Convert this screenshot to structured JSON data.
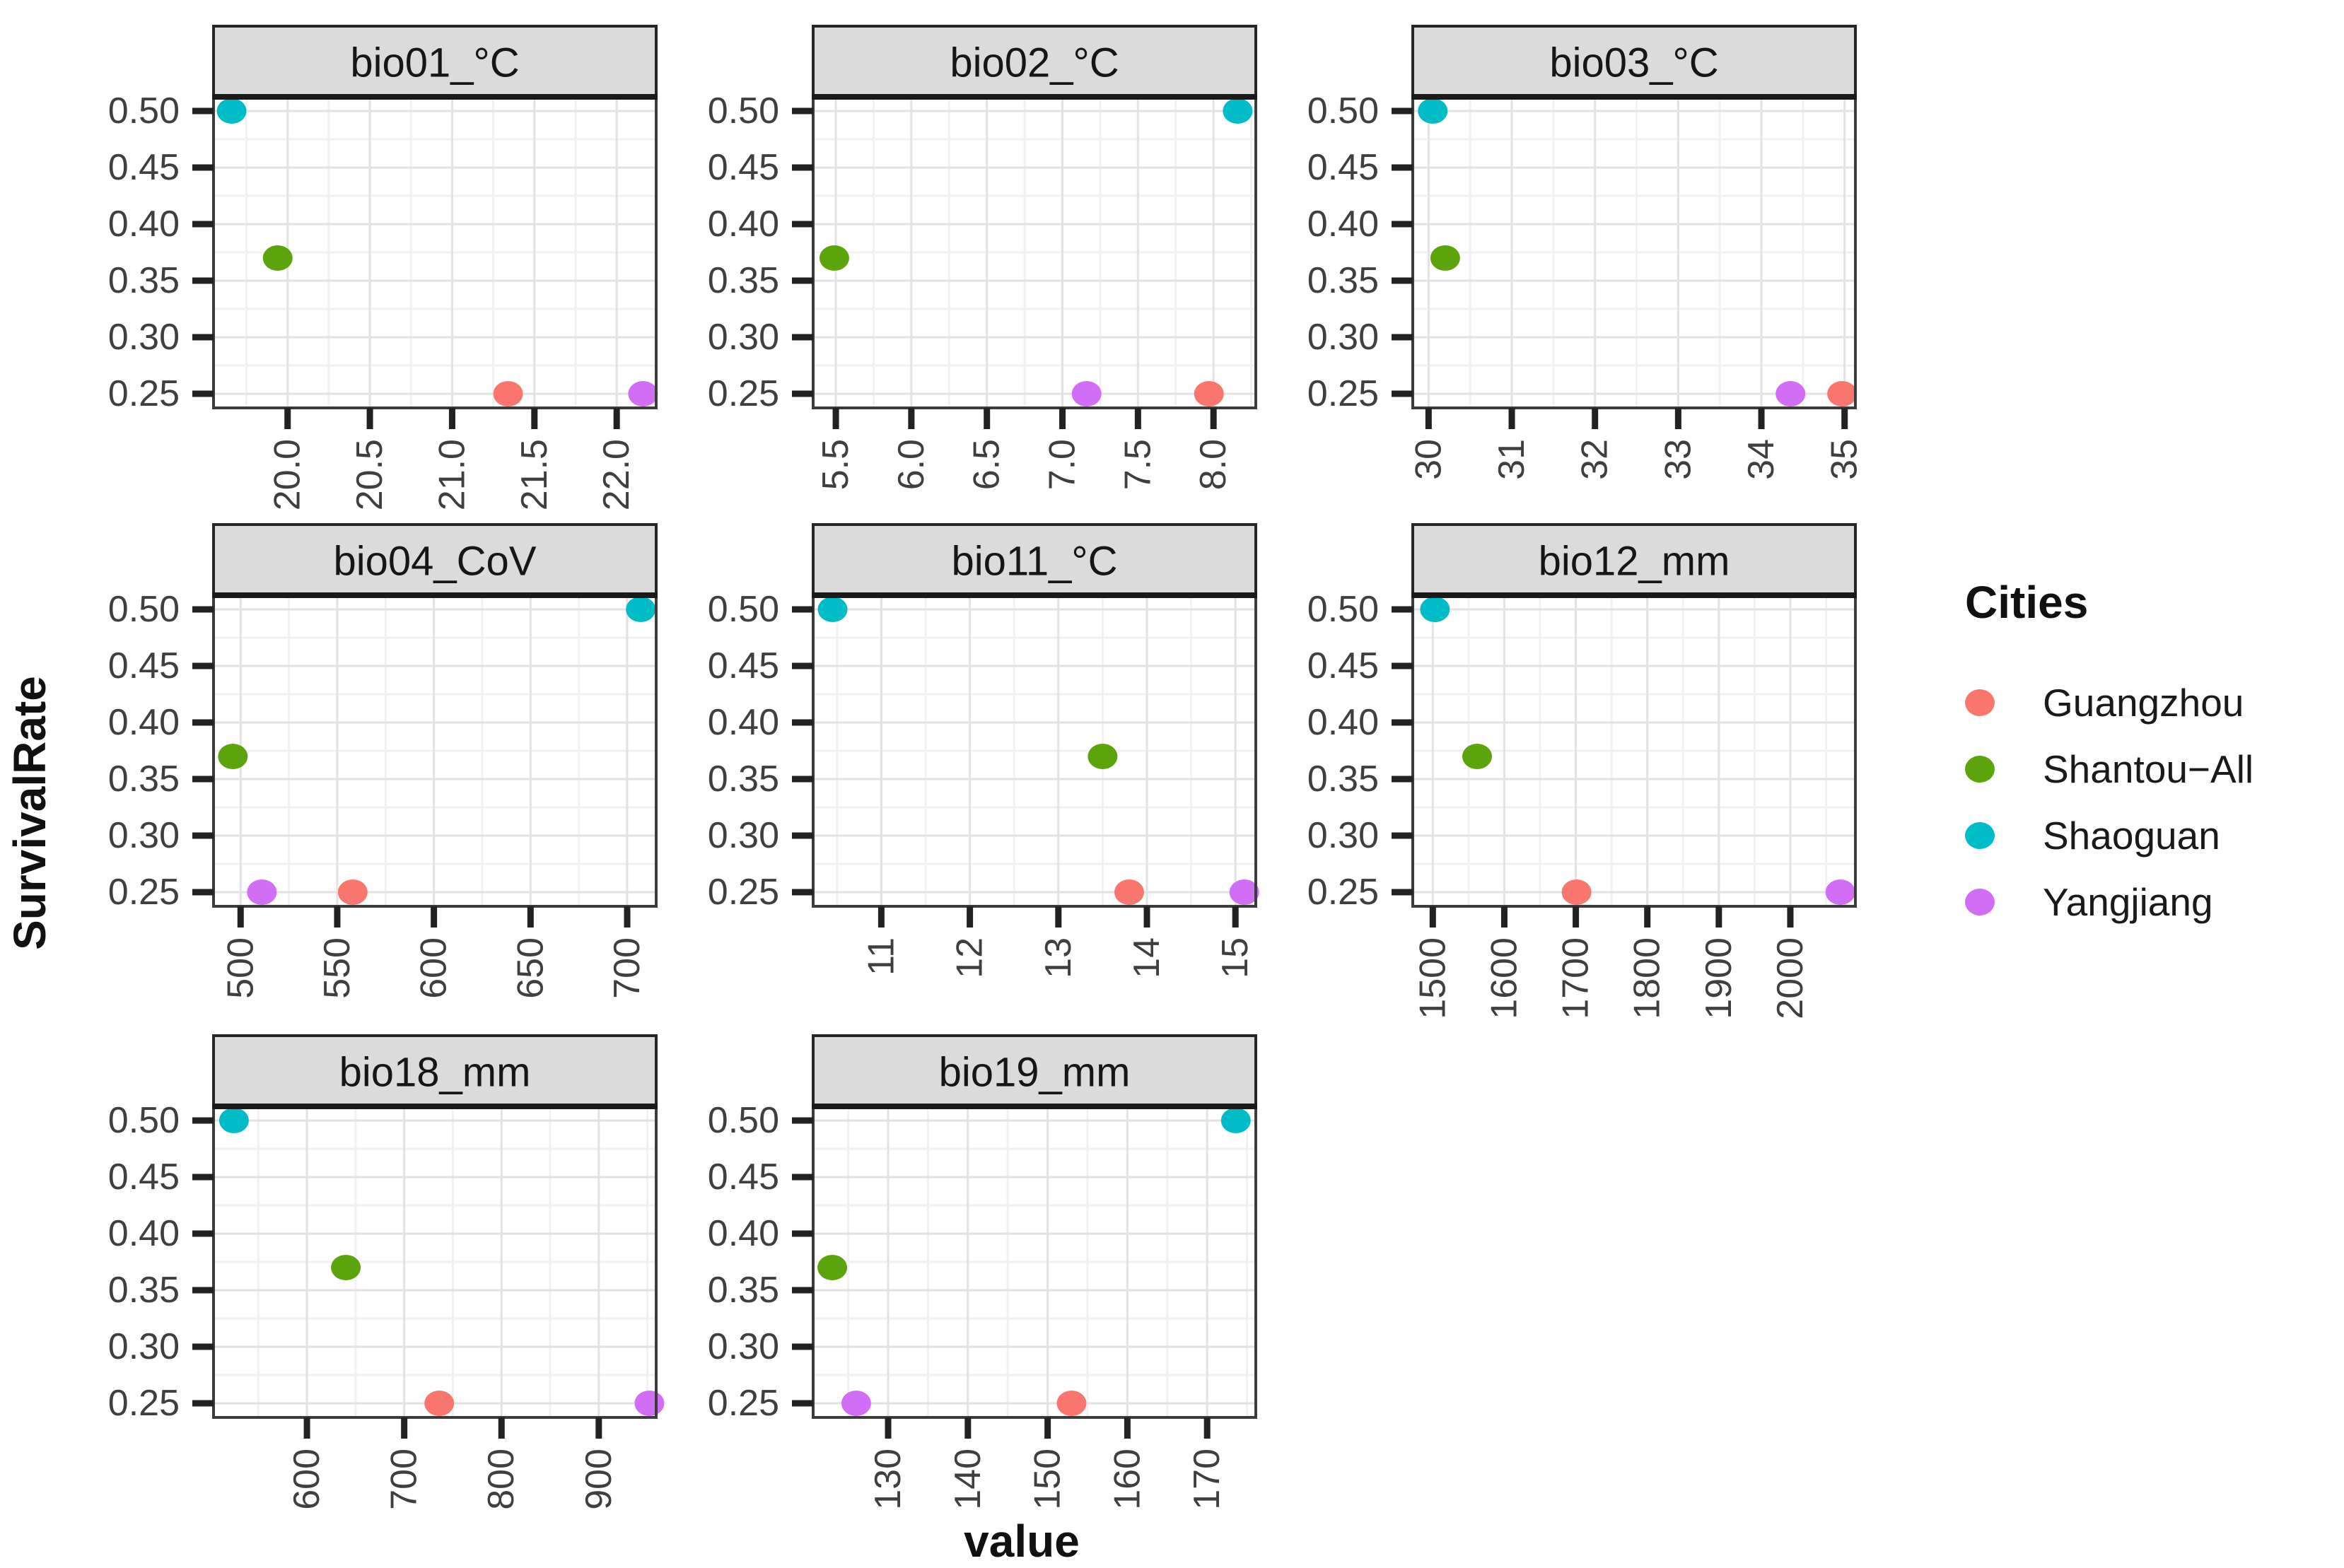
{
  "figure": {
    "ylabel": "SurvivalRate",
    "xlabel": "value"
  },
  "legend": {
    "title": "Cities",
    "items": [
      {
        "label": "Guangzhou",
        "color": "#F8766D"
      },
      {
        "label": "Shantou−All",
        "color": "#5CA40B"
      },
      {
        "label": "Shaoguan",
        "color": "#00BCC6"
      },
      {
        "label": "Yangjiang",
        "color": "#D26DF5"
      }
    ]
  },
  "chart_data": {
    "type": "scatter",
    "title": "",
    "xlabel": "value",
    "ylabel": "SurvivalRate",
    "grid": true,
    "legend_position": "right",
    "y_axis": {
      "ticks": [
        0.5,
        0.45,
        0.4,
        0.35,
        0.3,
        0.25
      ],
      "tick_labels": [
        "0.50",
        "0.45",
        "0.40",
        "0.35",
        "0.30",
        "0.25"
      ],
      "range": [
        0.2375,
        0.5125
      ],
      "minor_step": 0.025
    },
    "city_survival_rates": {
      "Guangzhou": 0.25,
      "Shantou−All": 0.37,
      "Shaoguan": 0.5,
      "Yangjiang": 0.25
    },
    "facets": [
      {
        "title": "bio01_°C",
        "xlim": [
          19.55,
          22.24
        ],
        "xticks": [
          20.0,
          20.5,
          21.0,
          21.5,
          22.0
        ],
        "xtick_labels": [
          "20.0",
          "20.5",
          "21.0",
          "21.5",
          "22.0"
        ],
        "minor_step": 0.25,
        "points": [
          {
            "city": "Shaoguan",
            "x": 19.66,
            "y": 0.5
          },
          {
            "city": "Shantou−All",
            "x": 19.94,
            "y": 0.37
          },
          {
            "city": "Guangzhou",
            "x": 21.34,
            "y": 0.25
          },
          {
            "city": "Yangjiang",
            "x": 22.16,
            "y": 0.25
          }
        ]
      },
      {
        "title": "bio02_°C",
        "xlim": [
          5.35,
          8.28
        ],
        "xticks": [
          5.5,
          6.0,
          6.5,
          7.0,
          7.5,
          8.0
        ],
        "xtick_labels": [
          "5.5",
          "6.0",
          "6.5",
          "7.0",
          "7.5",
          "8.0"
        ],
        "minor_step": 0.25,
        "points": [
          {
            "city": "Shaoguan",
            "x": 8.16,
            "y": 0.5
          },
          {
            "city": "Shantou−All",
            "x": 5.49,
            "y": 0.37
          },
          {
            "city": "Guangzhou",
            "x": 7.97,
            "y": 0.25
          },
          {
            "city": "Yangjiang",
            "x": 7.16,
            "y": 0.25
          }
        ]
      },
      {
        "title": "bio03_°C",
        "xlim": [
          29.81,
          35.13
        ],
        "xticks": [
          30,
          31,
          32,
          33,
          34,
          35
        ],
        "xtick_labels": [
          "30",
          "31",
          "32",
          "33",
          "34",
          "35"
        ],
        "minor_step": 0.5,
        "points": [
          {
            "city": "Shaoguan",
            "x": 30.05,
            "y": 0.5
          },
          {
            "city": "Shantou−All",
            "x": 30.2,
            "y": 0.37
          },
          {
            "city": "Guangzhou",
            "x": 34.97,
            "y": 0.25
          },
          {
            "city": "Yangjiang",
            "x": 34.35,
            "y": 0.25
          }
        ]
      },
      {
        "title": "bio04_CoV",
        "xlim": [
          486,
          715
        ],
        "xticks": [
          500,
          550,
          600,
          650,
          700
        ],
        "xtick_labels": [
          "500",
          "550",
          "600",
          "650",
          "700"
        ],
        "minor_step": 25,
        "points": [
          {
            "city": "Shaoguan",
            "x": 707,
            "y": 0.5
          },
          {
            "city": "Shantou−All",
            "x": 496,
            "y": 0.37
          },
          {
            "city": "Guangzhou",
            "x": 558,
            "y": 0.25
          },
          {
            "city": "Yangjiang",
            "x": 511,
            "y": 0.25
          }
        ]
      },
      {
        "title": "bio11_°C",
        "xlim": [
          10.23,
          15.23
        ],
        "xticks": [
          11,
          12,
          13,
          14,
          15
        ],
        "xtick_labels": [
          "11",
          "12",
          "13",
          "14",
          "15"
        ],
        "minor_step": 0.5,
        "points": [
          {
            "city": "Shaoguan",
            "x": 10.45,
            "y": 0.5
          },
          {
            "city": "Shantou−All",
            "x": 13.5,
            "y": 0.37
          },
          {
            "city": "Guangzhou",
            "x": 13.8,
            "y": 0.25
          },
          {
            "city": "Yangjiang",
            "x": 15.1,
            "y": 0.25
          }
        ]
      },
      {
        "title": "bio12_mm",
        "xlim": [
          1472,
          2091
        ],
        "xticks": [
          1500,
          1600,
          1700,
          1800,
          1900,
          2000
        ],
        "xtick_labels": [
          "1500",
          "1600",
          "1700",
          "1800",
          "1900",
          "2000"
        ],
        "minor_step": 50,
        "points": [
          {
            "city": "Shaoguan",
            "x": 1503,
            "y": 0.5
          },
          {
            "city": "Shantou−All",
            "x": 1562,
            "y": 0.37
          },
          {
            "city": "Guangzhou",
            "x": 1701,
            "y": 0.25
          },
          {
            "city": "Yangjiang",
            "x": 2070,
            "y": 0.25
          }
        ]
      },
      {
        "title": "bio18_mm",
        "xlim": [
          504,
          959
        ],
        "xticks": [
          600,
          700,
          800,
          900
        ],
        "xtick_labels": [
          "600",
          "700",
          "800",
          "900"
        ],
        "minor_step": 50,
        "points": [
          {
            "city": "Shaoguan",
            "x": 525,
            "y": 0.5
          },
          {
            "city": "Shantou−All",
            "x": 640,
            "y": 0.37
          },
          {
            "city": "Guangzhou",
            "x": 736,
            "y": 0.25
          },
          {
            "city": "Yangjiang",
            "x": 952,
            "y": 0.25
          }
        ]
      },
      {
        "title": "bio19_mm",
        "xlim": [
          120.6,
          176.1
        ],
        "xticks": [
          130,
          140,
          150,
          160,
          170
        ],
        "xtick_labels": [
          "130",
          "140",
          "150",
          "160",
          "170"
        ],
        "minor_step": 5,
        "points": [
          {
            "city": "Shaoguan",
            "x": 173.6,
            "y": 0.5
          },
          {
            "city": "Shantou−All",
            "x": 123.0,
            "y": 0.37
          },
          {
            "city": "Guangzhou",
            "x": 153.0,
            "y": 0.25
          },
          {
            "city": "Yangjiang",
            "x": 126.0,
            "y": 0.25
          }
        ]
      }
    ]
  }
}
